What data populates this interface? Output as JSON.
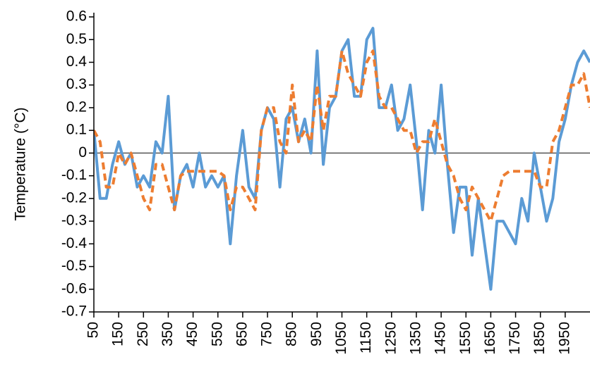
{
  "chart_data": {
    "type": "line",
    "y_label": "Temperature (°C)",
    "x": [
      50,
      75,
      100,
      125,
      150,
      175,
      200,
      225,
      250,
      275,
      300,
      325,
      350,
      375,
      400,
      425,
      450,
      475,
      500,
      525,
      550,
      575,
      600,
      625,
      650,
      675,
      700,
      725,
      750,
      775,
      800,
      825,
      850,
      875,
      900,
      925,
      950,
      975,
      1000,
      1025,
      1050,
      1075,
      1100,
      1125,
      1150,
      1175,
      1200,
      1225,
      1250,
      1275,
      1300,
      1325,
      1350,
      1375,
      1400,
      1425,
      1450,
      1475,
      1500,
      1525,
      1550,
      1575,
      1600,
      1625,
      1650,
      1675,
      1700,
      1725,
      1750,
      1775,
      1800,
      1825,
      1850,
      1875,
      1900,
      1925,
      1950,
      1975,
      2000,
      2025,
      2050
    ],
    "series": [
      {
        "color": "#5b9bd5",
        "line_style": "solid",
        "values": [
          0.1,
          -0.2,
          -0.2,
          -0.05,
          0.05,
          -0.05,
          0.0,
          -0.15,
          -0.1,
          -0.15,
          0.05,
          0.0,
          0.25,
          -0.25,
          -0.1,
          -0.05,
          -0.15,
          0.0,
          -0.15,
          -0.1,
          -0.15,
          -0.1,
          -0.4,
          -0.1,
          0.1,
          -0.15,
          -0.2,
          0.1,
          0.2,
          0.15,
          -0.15,
          0.15,
          0.2,
          0.05,
          0.15,
          0.0,
          0.45,
          -0.05,
          0.2,
          0.25,
          0.45,
          0.5,
          0.25,
          0.25,
          0.5,
          0.55,
          0.2,
          0.2,
          0.3,
          0.1,
          0.15,
          0.3,
          0.05,
          -0.25,
          0.1,
          0.0,
          0.3,
          -0.05,
          -0.35,
          -0.15,
          -0.15,
          -0.45,
          -0.2,
          -0.4,
          -0.6,
          -0.3,
          -0.3,
          -0.35,
          -0.4,
          -0.2,
          -0.3,
          0.0,
          -0.15,
          -0.3,
          -0.2,
          0.05,
          0.15,
          0.3,
          0.4,
          0.45,
          0.4
        ]
      },
      {
        "color": "#ed7d31",
        "line_style": "dashed",
        "values": [
          0.1,
          0.05,
          -0.15,
          -0.15,
          0.0,
          -0.05,
          0.0,
          -0.1,
          -0.2,
          -0.25,
          -0.05,
          -0.05,
          -0.15,
          -0.25,
          -0.1,
          -0.08,
          -0.08,
          -0.08,
          -0.08,
          -0.08,
          -0.08,
          -0.1,
          -0.25,
          -0.15,
          -0.15,
          -0.2,
          -0.25,
          0.1,
          0.2,
          0.2,
          0.05,
          0.0,
          0.3,
          0.05,
          0.1,
          0.05,
          0.3,
          0.1,
          0.25,
          0.25,
          0.45,
          0.35,
          0.3,
          0.25,
          0.4,
          0.45,
          0.25,
          0.2,
          0.2,
          0.15,
          0.1,
          0.1,
          0.0,
          0.05,
          0.05,
          0.15,
          0.05,
          -0.05,
          -0.1,
          -0.2,
          -0.25,
          -0.15,
          -0.2,
          -0.25,
          -0.3,
          -0.2,
          -0.1,
          -0.08,
          -0.08,
          -0.08,
          -0.08,
          -0.08,
          -0.15,
          -0.15,
          0.05,
          0.1,
          0.2,
          0.3,
          0.3,
          0.35,
          0.2
        ]
      }
    ],
    "xlim": [
      50,
      2050
    ],
    "ylim": [
      -0.7,
      0.6
    ],
    "xticks": [
      50,
      150,
      250,
      350,
      450,
      550,
      650,
      750,
      850,
      950,
      1050,
      1150,
      1250,
      1350,
      1450,
      1550,
      1650,
      1750,
      1850,
      1950
    ],
    "yticks": [
      0.6,
      0.5,
      0.4,
      0.3,
      0.2,
      0.1,
      0,
      -0.1,
      -0.2,
      -0.3,
      -0.4,
      -0.5,
      -0.6,
      -0.7
    ]
  }
}
